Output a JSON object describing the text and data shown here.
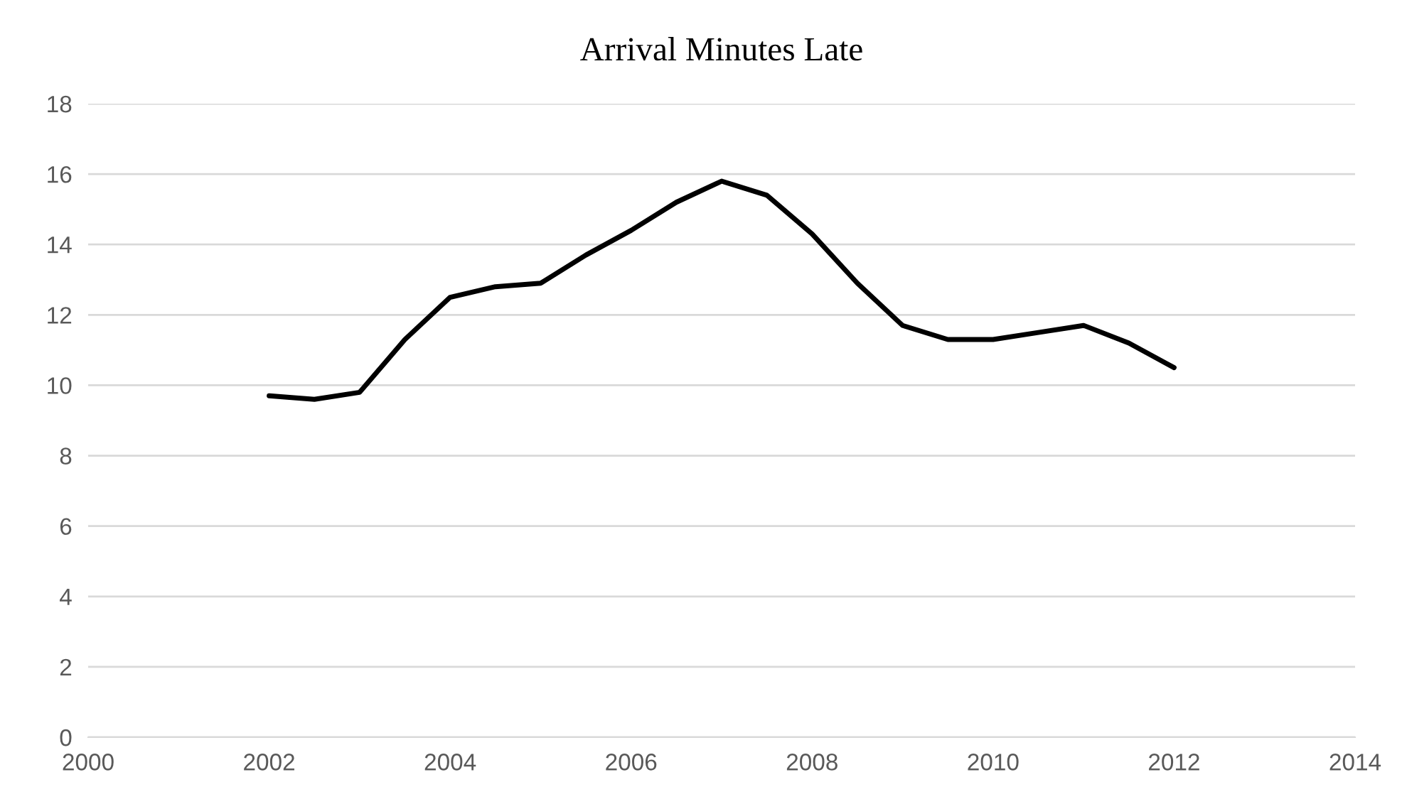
{
  "chart_data": {
    "type": "line",
    "title": "Arrival Minutes Late",
    "x": [
      2002,
      2002.5,
      2003,
      2003.5,
      2004,
      2004.5,
      2005,
      2005.5,
      2006,
      2006.5,
      2007,
      2007.5,
      2008,
      2008.5,
      2009,
      2009.5,
      2010,
      2010.5,
      2011,
      2011.5,
      2012
    ],
    "series": [
      {
        "color": "#000000",
        "values": [
          9.7,
          9.6,
          9.8,
          11.3,
          12.5,
          12.8,
          12.9,
          13.7,
          14.4,
          15.2,
          15.8,
          15.4,
          14.3,
          12.9,
          11.7,
          11.3,
          11.3,
          11.5,
          11.7,
          11.2,
          10.5
        ]
      }
    ],
    "xlim": [
      2000,
      2014
    ],
    "xticks": [
      2000,
      2002,
      2004,
      2006,
      2008,
      2010,
      2012,
      2014
    ],
    "ylim": [
      0,
      18
    ],
    "yticks": [
      0,
      2,
      4,
      6,
      8,
      10,
      12,
      14,
      16,
      18
    ],
    "grid": "y",
    "legend": false,
    "marker": "none",
    "line_style": "solid"
  }
}
